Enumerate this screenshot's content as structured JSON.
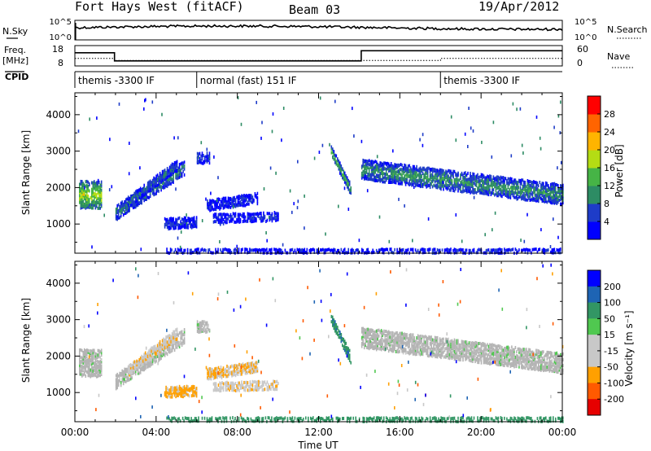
{
  "header": {
    "station": "Fort Hays West (fitACF)",
    "beam": "Beam 03",
    "date": "19/Apr/2012"
  },
  "noise_panel": {
    "left_label": "N.Sky",
    "right_label": "N.Search",
    "left_ticks": [
      "10^5",
      "10^0"
    ],
    "right_ticks": [
      "10^5",
      "10^0"
    ]
  },
  "freq_panel": {
    "left_label_1": "Freq.",
    "left_label_2": "[MHz]",
    "left_ticks": [
      "18",
      "8"
    ],
    "right_label": "Nave",
    "right_ticks": [
      "60",
      "0"
    ],
    "freq_levels_mhz": [
      {
        "t": 0.0,
        "v": 14.5
      },
      {
        "t": 1.95,
        "v": 14.5
      },
      {
        "t": 1.95,
        "v": 10.5
      },
      {
        "t": 14.1,
        "v": 10.5
      },
      {
        "t": 14.1,
        "v": 15.5
      },
      {
        "t": 24.0,
        "v": 15.5
      }
    ],
    "nave_levels": [
      {
        "t": 0.0,
        "v": 22
      },
      {
        "t": 1.95,
        "v": 22
      },
      {
        "t": 1.95,
        "v": 16
      },
      {
        "t": 18.0,
        "v": 16
      },
      {
        "t": 18.0,
        "v": 22
      },
      {
        "t": 24.0,
        "v": 22
      }
    ]
  },
  "cpid_panel": {
    "label": "CPID",
    "segments": [
      {
        "start": 0.0,
        "end": 6.0,
        "text": "themis -3300 IF"
      },
      {
        "start": 6.0,
        "end": 18.0,
        "text": "normal (fast) 151 IF"
      },
      {
        "start": 18.0,
        "end": 24.0,
        "text": "themis -3300 IF"
      }
    ]
  },
  "colors": {
    "power": [
      "#0000ff",
      "#1e3cc8",
      "#2d8c64",
      "#46b446",
      "#b4dc14",
      "#ffb400",
      "#ff6400",
      "#ff0000"
    ],
    "velocity": [
      "#e60000",
      "#ff5a00",
      "#ffa000",
      "#c8c8c8",
      "#c8c8c8",
      "#50c850",
      "#329664",
      "#1e64b4",
      "#0000ff"
    ],
    "ground_scatter": "#b4b4b4"
  },
  "chart_data": [
    {
      "type": "heatmap",
      "title": "",
      "xlabel": "",
      "ylabel": "Slant Range [km]",
      "xlim": [
        0,
        24
      ],
      "ylim": [
        200,
        4600
      ],
      "x_ticks": [
        0,
        4,
        8,
        12,
        16,
        20,
        24
      ],
      "y_ticks": [
        1000,
        2000,
        3000,
        4000
      ],
      "colorbar": {
        "label": "Power [dB]",
        "range": [
          0,
          32
        ],
        "tick_values": [
          4,
          8,
          12,
          16,
          20,
          24,
          28
        ],
        "tick_labels": [
          "4",
          "8",
          "12",
          "16",
          "20",
          "24",
          "28"
        ]
      },
      "scatter_bands": [
        {
          "t0": 0.2,
          "t1": 1.3,
          "r0": 1800,
          "r1": 1800,
          "width": 700,
          "power": 18
        },
        {
          "t0": 2.0,
          "t1": 5.4,
          "r0": 1300,
          "r1": 2550,
          "width": 350,
          "power": 10
        },
        {
          "t0": 2.6,
          "t1": 5.0,
          "r0": 1600,
          "r1": 2600,
          "width": 250,
          "power": 8
        },
        {
          "t0": 6.0,
          "t1": 6.6,
          "r0": 2800,
          "r1": 2800,
          "width": 250,
          "power": 6
        },
        {
          "t0": 4.4,
          "t1": 6.0,
          "r0": 1000,
          "r1": 1050,
          "width": 250,
          "power": 6
        },
        {
          "t0": 6.8,
          "t1": 10.0,
          "r0": 1150,
          "r1": 1200,
          "width": 200,
          "power": 5
        },
        {
          "t0": 6.5,
          "t1": 9.0,
          "r0": 1500,
          "r1": 1700,
          "width": 250,
          "power": 5
        },
        {
          "t0": 12.6,
          "t1": 13.6,
          "r0": 3000,
          "r1": 1900,
          "width": 250,
          "power": 14
        },
        {
          "t0": 14.1,
          "t1": 24.0,
          "r0": 2500,
          "r1": 1800,
          "width": 500,
          "power": 11
        },
        {
          "t0": 4.5,
          "t1": 24.0,
          "r0": 250,
          "r1": 250,
          "width": 80,
          "power": 6
        }
      ]
    },
    {
      "type": "heatmap",
      "title": "",
      "xlabel": "Time UT",
      "ylabel": "Slant Range [km]",
      "xlim": [
        0,
        24
      ],
      "ylim": [
        200,
        4600
      ],
      "x_ticks": [
        0,
        4,
        8,
        12,
        16,
        20,
        24
      ],
      "x_tick_labels": [
        "00:00",
        "04:00",
        "08:00",
        "12:00",
        "16:00",
        "20:00",
        "00:00"
      ],
      "y_ticks": [
        1000,
        2000,
        3000,
        4000
      ],
      "colorbar": {
        "label": "Velocity [m s⁻¹]",
        "tick_values": [
          -200,
          -100,
          -50,
          -15,
          15,
          50,
          100,
          200
        ],
        "tick_labels": [
          "-200",
          "-100",
          "-50",
          "-15",
          "15",
          "50",
          "100",
          "200"
        ]
      },
      "scatter_bands": [
        {
          "t0": 0.2,
          "t1": 1.3,
          "r0": 1800,
          "r1": 1800,
          "width": 700,
          "vel": 0
        },
        {
          "t0": 2.0,
          "t1": 5.4,
          "r0": 1300,
          "r1": 2550,
          "width": 350,
          "vel": 0
        },
        {
          "t0": 2.6,
          "t1": 5.0,
          "r0": 1600,
          "r1": 2600,
          "width": 250,
          "vel": -40
        },
        {
          "t0": 6.0,
          "t1": 6.6,
          "r0": 2800,
          "r1": 2800,
          "width": 250,
          "vel": 0
        },
        {
          "t0": 4.4,
          "t1": 6.0,
          "r0": 1000,
          "r1": 1050,
          "width": 250,
          "vel": -60
        },
        {
          "t0": 6.8,
          "t1": 10.0,
          "r0": 1150,
          "r1": 1200,
          "width": 200,
          "vel": -40
        },
        {
          "t0": 6.5,
          "t1": 9.0,
          "r0": 1500,
          "r1": 1700,
          "width": 250,
          "vel": -50
        },
        {
          "t0": 12.6,
          "t1": 13.6,
          "r0": 3000,
          "r1": 1900,
          "width": 250,
          "vel": 40
        },
        {
          "t0": 14.1,
          "t1": 24.0,
          "r0": 2500,
          "r1": 1800,
          "width": 500,
          "vel": 0
        },
        {
          "t0": 4.5,
          "t1": 24.0,
          "r0": 250,
          "r1": 250,
          "width": 80,
          "vel": 30
        }
      ]
    }
  ]
}
